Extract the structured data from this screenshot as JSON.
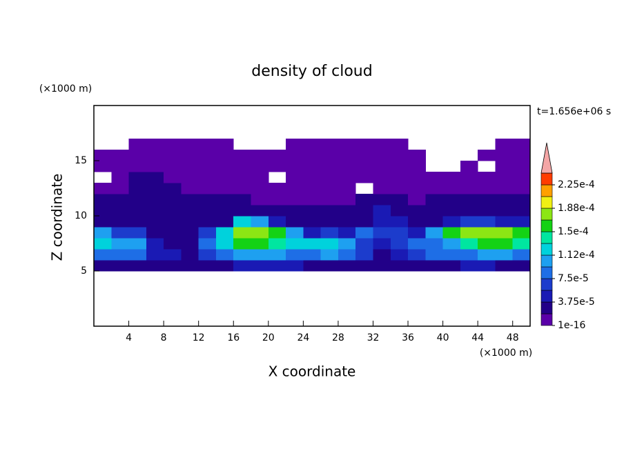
{
  "chart_data": {
    "type": "contour",
    "title": "density of cloud",
    "x_label": "X coordinate",
    "y_label": "Z coordinate",
    "x_unit": "(×1000 m)",
    "y_unit": "(×1000 m)",
    "annotation": "t=1.656e+06 s",
    "xlim": [
      0,
      50
    ],
    "ylim": [
      0,
      20
    ],
    "xticks": [
      4,
      8,
      12,
      16,
      20,
      24,
      28,
      32,
      36,
      40,
      44,
      48
    ],
    "yticks": [
      5,
      10,
      15
    ],
    "x": [
      1,
      3,
      5,
      7,
      9,
      11,
      13,
      15,
      17,
      19,
      21,
      23,
      25,
      27,
      29,
      31,
      33,
      35,
      37,
      39,
      41,
      43,
      45,
      47,
      49
    ],
    "y": [
      5.5,
      6.5,
      7.5,
      8.5,
      9.5,
      10.5,
      11.5,
      12.5,
      13.5,
      14.5,
      15.5,
      16.5
    ],
    "z": [
      [
        3e-05,
        3e-05,
        3e-05,
        2e-05,
        2e-05,
        2e-05,
        2e-05,
        2e-05,
        4e-05,
        4e-05,
        4e-05,
        4e-05,
        3e-05,
        3e-05,
        3e-05,
        3e-05,
        3e-05,
        3e-05,
        3e-05,
        2e-05,
        3e-05,
        4e-05,
        4e-05,
        3e-05,
        3e-05
      ],
      [
        8e-05,
        9e-05,
        8e-05,
        5e-05,
        4e-05,
        3e-05,
        6e-05,
        9e-05,
        0.0001,
        0.00011,
        0.0001,
        9e-05,
        9e-05,
        0.0001,
        9e-05,
        6e-05,
        3e-05,
        5e-05,
        6e-05,
        9e-05,
        9e-05,
        8e-05,
        0.0001,
        0.0001,
        9e-05
      ],
      [
        0.00012,
        0.0001,
        0.00011,
        4e-05,
        3e-05,
        3e-05,
        8e-05,
        0.00013,
        0.00015,
        0.00015,
        0.00014,
        0.00013,
        0.00012,
        0.00012,
        0.00011,
        7e-05,
        4e-05,
        7e-05,
        8e-05,
        8e-05,
        0.00011,
        0.00014,
        0.00015,
        0.00015,
        0.00014
      ],
      [
        0.00011,
        6e-05,
        6e-05,
        3e-05,
        2e-05,
        3e-05,
        6e-05,
        0.00013,
        0.00017,
        0.00018,
        0.00016,
        0.00011,
        5e-05,
        6e-05,
        5e-05,
        8e-05,
        6e-05,
        6e-05,
        4e-05,
        0.0001,
        0.00016,
        0.00018,
        0.00018,
        0.00017,
        0.00016
      ],
      [
        3e-05,
        3e-05,
        3e-05,
        2e-05,
        2e-05,
        2e-05,
        2e-05,
        3e-05,
        0.00012,
        0.0001,
        5e-05,
        2e-05,
        2e-05,
        2e-05,
        2e-05,
        3e-05,
        5e-05,
        4e-05,
        2e-05,
        3e-05,
        5e-05,
        6e-05,
        6e-05,
        5e-05,
        4e-05
      ],
      [
        2e-05,
        2e-05,
        3e-05,
        2e-05,
        2e-05,
        2e-05,
        2e-05,
        2e-05,
        2e-05,
        2e-05,
        2e-05,
        2e-05,
        2e-05,
        2e-05,
        2e-05,
        3e-05,
        4e-05,
        3e-05,
        2e-05,
        2e-05,
        2e-05,
        3e-05,
        3e-05,
        2e-05,
        2e-05
      ],
      [
        2e-05,
        2e-05,
        2e-05,
        2e-05,
        2e-05,
        2e-05,
        2e-05,
        2e-05,
        2e-05,
        1e-05,
        1e-05,
        1e-05,
        1e-05,
        1e-05,
        1e-05,
        2e-05,
        2e-05,
        2e-05,
        1e-05,
        2e-05,
        2e-05,
        2e-05,
        2e-05,
        2e-05,
        2e-05
      ],
      [
        1e-05,
        1e-05,
        2e-05,
        2e-05,
        2e-05,
        1e-05,
        1e-05,
        1e-05,
        1e-05,
        1e-05,
        1e-05,
        1e-05,
        1e-05,
        1e-05,
        1e-05,
        null,
        1e-05,
        1e-05,
        1e-05,
        1e-05,
        1e-05,
        1e-05,
        1e-05,
        1e-05,
        1e-05
      ],
      [
        null,
        1e-05,
        2e-05,
        2e-05,
        1e-05,
        1e-05,
        1e-05,
        1e-05,
        1e-05,
        1e-05,
        null,
        1e-05,
        1e-05,
        1e-05,
        1e-05,
        1e-05,
        1e-05,
        1e-05,
        1e-05,
        1e-05,
        1e-05,
        1e-05,
        1e-05,
        1e-05,
        1e-05
      ],
      [
        1e-05,
        1e-05,
        1e-05,
        1e-05,
        1e-05,
        1e-05,
        1e-05,
        1e-05,
        1e-05,
        1e-05,
        1e-05,
        1e-05,
        1e-05,
        1e-05,
        1e-05,
        1e-05,
        1e-05,
        1e-05,
        1e-05,
        null,
        null,
        1e-05,
        null,
        1e-05,
        1e-05
      ],
      [
        1e-05,
        1e-05,
        1e-05,
        1e-05,
        1e-05,
        1e-05,
        1e-05,
        1e-05,
        1e-05,
        1e-05,
        1e-05,
        1e-05,
        1e-05,
        1e-05,
        1e-05,
        1e-05,
        1e-05,
        1e-05,
        1e-05,
        null,
        null,
        null,
        1e-05,
        1e-05,
        1e-05
      ],
      [
        null,
        null,
        1e-05,
        1e-05,
        1e-05,
        1e-05,
        1e-05,
        1e-05,
        null,
        null,
        null,
        1e-05,
        1e-05,
        1e-05,
        1e-05,
        1e-05,
        1e-05,
        1e-05,
        null,
        null,
        null,
        null,
        null,
        1e-05,
        1e-05
      ]
    ],
    "colorbar": {
      "levels": [
        1e-16,
        1.875e-05,
        3.75e-05,
        5.625e-05,
        7.5e-05,
        9.375e-05,
        0.0001125,
        0.00013125,
        0.00015,
        0.00016875,
        0.0001875,
        0.00020625,
        0.000225
      ],
      "colors": [
        "#5a00a8",
        "#220088",
        "#1a1ab4",
        "#1c3ccc",
        "#1e6ee6",
        "#1ea0f0",
        "#00d2dc",
        "#00e6a0",
        "#14d214",
        "#8ce614",
        "#f0f014",
        "#ffa000",
        "#ff3c00"
      ],
      "clim": [
        1e-16,
        0.00024375
      ],
      "extend_color": "#f4a6a6",
      "ticks": [
        1e-16,
        {
          "value": 3.75e-05,
          "label": "3.75e-5"
        },
        {
          "value": 7.5e-05,
          "label": "7.5e-5"
        },
        {
          "value": 0.0001125,
          "label": "1.12e-4"
        },
        {
          "value": 0.00015,
          "label": "1.5e-4"
        },
        {
          "value": 0.0001875,
          "label": "1.88e-4"
        },
        {
          "value": 0.000225,
          "label": "2.25e-4"
        }
      ]
    }
  }
}
